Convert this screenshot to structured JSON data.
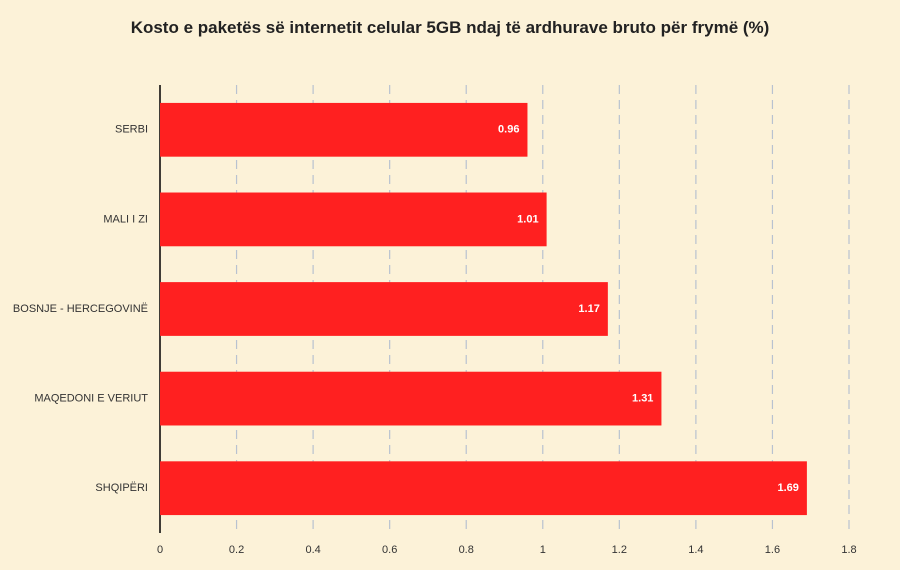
{
  "chart_data": {
    "type": "hbar",
    "title": "Kosto e paketës së internetit celular 5GB ndaj të ardhurave bruto për frymë (%)",
    "categories": [
      "SERBI",
      "MALI I ZI",
      "BOSNJE - HERCEGOVINË",
      "MAQEDONI E VERIUT",
      "SHQIPËRI"
    ],
    "values": [
      0.96,
      1.01,
      1.17,
      1.31,
      1.69
    ],
    "color": "#ff2020",
    "xlim": [
      0,
      1.8
    ],
    "xticks": [
      0,
      0.2,
      0.4,
      0.6,
      0.8,
      1,
      1.2,
      1.4,
      1.6,
      1.8
    ],
    "grid": true
  }
}
